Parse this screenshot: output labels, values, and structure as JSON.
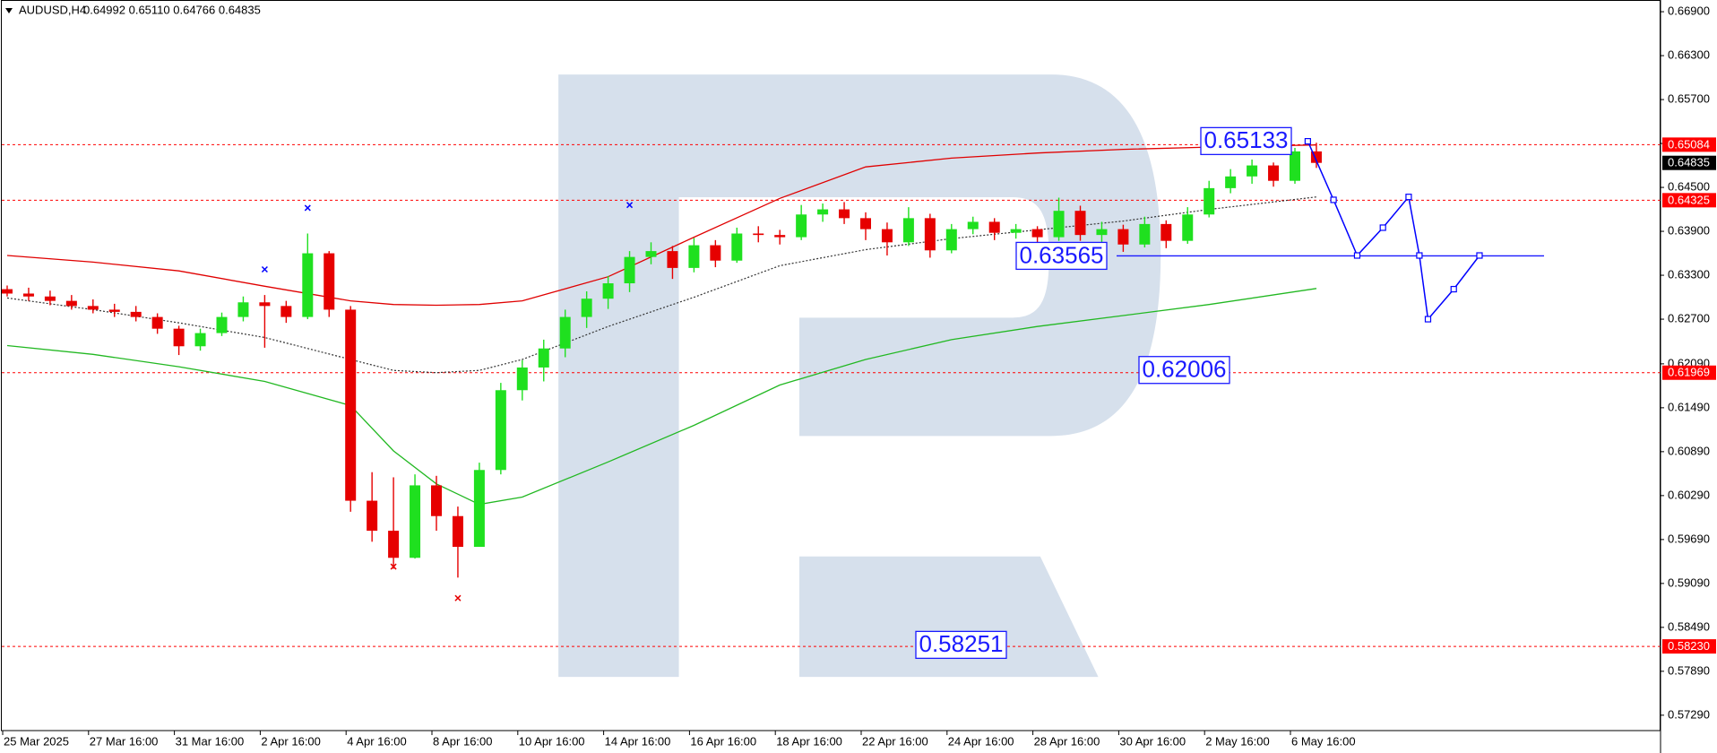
{
  "chart_data": {
    "type": "candlestick",
    "title": "AUDUSD,H4",
    "ohlc_text": "0.64992 0.65110 0.64766 0.64835",
    "up_color": "#1fe01f",
    "down_color": "#e60000",
    "open": [
      0.6311,
      0.6305,
      0.6301,
      0.6295,
      0.6288,
      0.6283,
      0.628,
      0.6273,
      0.6257,
      0.6233,
      0.6251,
      0.6273,
      0.6293,
      0.6288,
      0.6273,
      0.636,
      0.6283,
      0.6022,
      0.5981,
      0.5944,
      0.6043,
      0.6001,
      0.5959,
      0.6064,
      0.6173,
      0.6204,
      0.623,
      0.6273,
      0.6298,
      0.6319,
      0.6355,
      0.6363,
      0.634,
      0.6371,
      0.635,
      0.6387,
      0.6385,
      0.6382,
      0.6413,
      0.642,
      0.6408,
      0.6393,
      0.6375,
      0.6408,
      0.6364,
      0.6393,
      0.6403,
      0.6388,
      0.6393,
      0.6382,
      0.6418,
      0.6385,
      0.6393,
      0.6372,
      0.64,
      0.6377,
      0.6413,
      0.6449,
      0.6465,
      0.648,
      0.6459,
      0.64992
    ],
    "high": [
      0.6316,
      0.6313,
      0.6309,
      0.6303,
      0.6297,
      0.6291,
      0.6288,
      0.6278,
      0.6261,
      0.6257,
      0.6279,
      0.6301,
      0.6303,
      0.6295,
      0.6387,
      0.6363,
      0.6288,
      0.6061,
      0.6054,
      0.6058,
      0.6056,
      0.6014,
      0.6074,
      0.6183,
      0.6214,
      0.6242,
      0.6283,
      0.6308,
      0.6329,
      0.6363,
      0.6375,
      0.637,
      0.6381,
      0.6378,
      0.6395,
      0.6397,
      0.6392,
      0.6426,
      0.6428,
      0.643,
      0.6416,
      0.6402,
      0.6423,
      0.6414,
      0.64,
      0.641,
      0.6408,
      0.64,
      0.6397,
      0.6436,
      0.6425,
      0.6403,
      0.6399,
      0.641,
      0.6405,
      0.6423,
      0.6459,
      0.6475,
      0.6488,
      0.6484,
      0.6504,
      0.6511
    ],
    "low": [
      0.6301,
      0.6295,
      0.6289,
      0.6283,
      0.6278,
      0.6273,
      0.6267,
      0.625,
      0.6221,
      0.6227,
      0.6247,
      0.6267,
      0.6231,
      0.6265,
      0.627,
      0.6273,
      0.6007,
      0.5966,
      0.5929,
      0.5943,
      0.5981,
      0.5917,
      0.5959,
      0.6058,
      0.6159,
      0.6185,
      0.6218,
      0.6258,
      0.6284,
      0.6307,
      0.6345,
      0.6325,
      0.6334,
      0.6341,
      0.6347,
      0.6375,
      0.6372,
      0.6378,
      0.6403,
      0.64,
      0.6378,
      0.6357,
      0.637,
      0.6354,
      0.636,
      0.6386,
      0.6378,
      0.638,
      0.6372,
      0.6377,
      0.6377,
      0.6373,
      0.6362,
      0.6368,
      0.6367,
      0.6373,
      0.6409,
      0.6442,
      0.6455,
      0.6451,
      0.6455,
      0.64766
    ],
    "close": [
      0.6305,
      0.6301,
      0.6295,
      0.6288,
      0.6283,
      0.628,
      0.6273,
      0.6257,
      0.6233,
      0.6251,
      0.6273,
      0.6293,
      0.6288,
      0.6273,
      0.636,
      0.6283,
      0.6022,
      0.5981,
      0.5944,
      0.6043,
      0.6001,
      0.5959,
      0.6064,
      0.6173,
      0.6204,
      0.623,
      0.6273,
      0.6298,
      0.6319,
      0.6355,
      0.6363,
      0.634,
      0.6371,
      0.635,
      0.6387,
      0.6385,
      0.6382,
      0.6413,
      0.642,
      0.6408,
      0.6393,
      0.6375,
      0.6408,
      0.6364,
      0.6393,
      0.6403,
      0.6388,
      0.6393,
      0.6382,
      0.6418,
      0.6385,
      0.6393,
      0.6372,
      0.64,
      0.6377,
      0.6413,
      0.6449,
      0.6465,
      0.648,
      0.6459,
      0.64992,
      0.64835
    ],
    "xticks": [
      {
        "value": 0,
        "label": "25 Mar 2025"
      },
      {
        "value": 4,
        "label": "27 Mar 16:00"
      },
      {
        "value": 8,
        "label": "31 Mar 16:00"
      },
      {
        "value": 12,
        "label": "2 Apr 16:00"
      },
      {
        "value": 16,
        "label": "4 Apr 16:00"
      },
      {
        "value": 20,
        "label": "8 Apr 16:00"
      },
      {
        "value": 24,
        "label": "10 Apr 16:00"
      },
      {
        "value": 28,
        "label": "14 Apr 16:00"
      },
      {
        "value": 32,
        "label": "16 Apr 16:00"
      },
      {
        "value": 36,
        "label": "18 Apr 16:00"
      },
      {
        "value": 40,
        "label": "22 Apr 16:00"
      },
      {
        "value": 44,
        "label": "24 Apr 16:00"
      },
      {
        "value": 48,
        "label": "28 Apr 16:00"
      },
      {
        "value": 52,
        "label": "30 Apr 16:00"
      },
      {
        "value": 56,
        "label": "2 May 16:00"
      },
      {
        "value": 60,
        "label": "6 May 16:00"
      }
    ],
    "ylim": [
      0.5708,
      0.6706
    ],
    "yticks": [
      {
        "value": 0.669,
        "label": "0.66900"
      },
      {
        "value": 0.663,
        "label": "0.66300"
      },
      {
        "value": 0.657,
        "label": "0.65700"
      },
      {
        "value": 0.651,
        "label": "0.65100"
      },
      {
        "value": 0.645,
        "label": "0.64500"
      },
      {
        "value": 0.639,
        "label": "0.63900"
      },
      {
        "value": 0.633,
        "label": "0.63300"
      },
      {
        "value": 0.627,
        "label": "0.62700"
      },
      {
        "value": 0.6209,
        "label": "0.62090"
      },
      {
        "value": 0.6149,
        "label": "0.61490"
      },
      {
        "value": 0.6089,
        "label": "0.60890"
      },
      {
        "value": 0.6029,
        "label": "0.60290"
      },
      {
        "value": 0.5969,
        "label": "0.59690"
      },
      {
        "value": 0.5909,
        "label": "0.59090"
      },
      {
        "value": 0.5849,
        "label": "0.58490"
      },
      {
        "value": 0.5789,
        "label": "0.57890"
      },
      {
        "value": 0.5729,
        "label": "0.57290"
      }
    ],
    "grid": false,
    "indicators": [
      {
        "color": "#e00000",
        "style": "solid",
        "x": [
          0,
          4,
          8,
          12,
          16,
          18,
          20,
          22,
          24,
          28,
          32,
          36,
          40,
          44,
          48,
          52,
          56,
          61
        ],
        "values": [
          0.6357,
          0.6348,
          0.6336,
          0.6315,
          0.6295,
          0.629,
          0.6289,
          0.629,
          0.6295,
          0.6328,
          0.6382,
          0.6435,
          0.6478,
          0.649,
          0.6497,
          0.6502,
          0.6505,
          0.6508
        ]
      },
      {
        "color": "#22b822",
        "style": "solid",
        "x": [
          0,
          4,
          8,
          12,
          16,
          18,
          20,
          22,
          24,
          28,
          32,
          36,
          40,
          44,
          48,
          52,
          56,
          61
        ],
        "values": [
          0.6234,
          0.6222,
          0.6205,
          0.6185,
          0.6152,
          0.609,
          0.6045,
          0.6017,
          0.6027,
          0.6075,
          0.6125,
          0.618,
          0.6215,
          0.6242,
          0.626,
          0.6275,
          0.629,
          0.6312
        ]
      },
      {
        "color": "#333333",
        "style": "dotted",
        "x": [
          0,
          4,
          8,
          12,
          16,
          18,
          20,
          22,
          24,
          28,
          32,
          36,
          40,
          44,
          48,
          52,
          56,
          61
        ],
        "values": [
          0.6299,
          0.6283,
          0.6265,
          0.6245,
          0.6215,
          0.62,
          0.6197,
          0.62,
          0.6215,
          0.626,
          0.63,
          0.6343,
          0.6365,
          0.638,
          0.6392,
          0.6404,
          0.642,
          0.6437
        ]
      }
    ],
    "fractals": [
      {
        "x": 12,
        "value": 0.6338,
        "color": "#0000ff"
      },
      {
        "x": 14,
        "value": 0.6422,
        "color": "#0000ff"
      },
      {
        "x": 29,
        "value": 0.6426,
        "color": "#0000ff"
      },
      {
        "x": 18,
        "value": 0.5932,
        "color": "#e60000"
      },
      {
        "x": 21,
        "value": 0.5889,
        "color": "#e60000"
      }
    ],
    "levels": [
      {
        "value": 0.65084,
        "label": "0.65084",
        "color": "#ff0000"
      },
      {
        "value": 0.64325,
        "label": "0.64325",
        "color": "#ff0000"
      },
      {
        "value": 0.61969,
        "label": "0.61969",
        "color": "#ff0000"
      },
      {
        "value": 0.5823,
        "label": "0.58230",
        "color": "#ff0000"
      }
    ],
    "current_price": {
      "value": 0.64835,
      "label": "0.64835"
    },
    "annotations": [
      {
        "value": 0.65133,
        "label": "0.65133"
      },
      {
        "value": 0.63565,
        "label": "0.63565"
      },
      {
        "value": 0.62006,
        "label": "0.62006"
      },
      {
        "value": 0.58251,
        "label": "0.58251"
      }
    ],
    "forecast": {
      "color": "#0000ff",
      "x": [
        60.6,
        61.8,
        62.9,
        64.1,
        65.3,
        65.8,
        66.2,
        67.4,
        68.6
      ],
      "values": [
        0.6513,
        0.6433,
        0.6357,
        0.6395,
        0.6437,
        0.6357,
        0.627,
        0.6311,
        0.6357
      ]
    }
  }
}
